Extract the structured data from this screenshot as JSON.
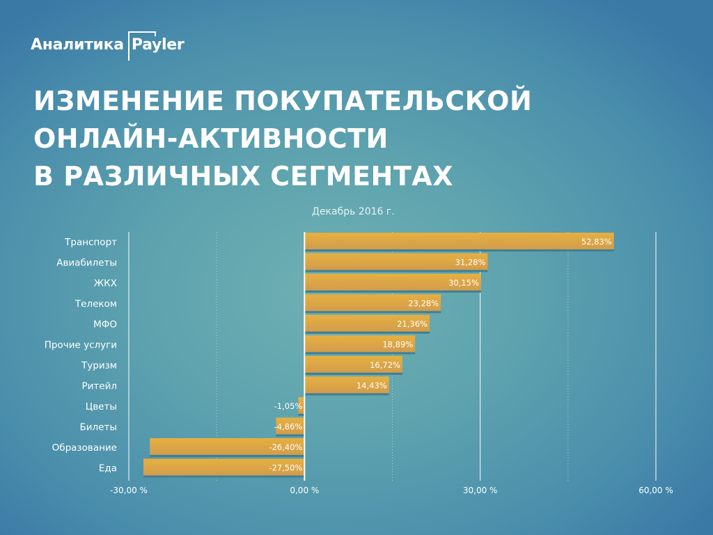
{
  "logo": {
    "left": "Аналитика",
    "right": "Payler"
  },
  "title": [
    "ИЗМЕНЕНИЕ ПОКУПАТЕЛЬСКОЙ",
    "ОНЛАЙН-АКТИВНОСТИ",
    "В РАЗЛИЧНЫХ СЕГМЕНТАХ"
  ],
  "chart_data": {
    "type": "bar",
    "orientation": "horizontal",
    "subtitle": "Декабрь 2016 г.",
    "categories": [
      "Транспорт",
      "Авиабилеты",
      "ЖКХ",
      "Телеком",
      "МФО",
      "Прочие услуги",
      "Туризм",
      "Ритейл",
      "Цветы",
      "Билеты",
      "Образование",
      "Еда"
    ],
    "values": [
      52.83,
      31.28,
      30.15,
      23.28,
      21.36,
      18.89,
      16.72,
      14.43,
      -1.05,
      -4.86,
      -26.4,
      -27.5
    ],
    "data_labels": [
      "52,83%",
      "31,28%",
      "30,15%",
      "23,28%",
      "21,36%",
      "18,89%",
      "16,72%",
      "14,43%",
      "-1,05%",
      "-4,86%",
      "-26,40%",
      "-27,50%"
    ],
    "xlim": [
      -30,
      60
    ],
    "xticks": [
      -30,
      0,
      30,
      60
    ],
    "xtick_labels": [
      "-30,00 %",
      "0,00 %",
      "30,00 %",
      "60,00 %"
    ],
    "grid": true,
    "bar_color": "#e0aa45"
  }
}
